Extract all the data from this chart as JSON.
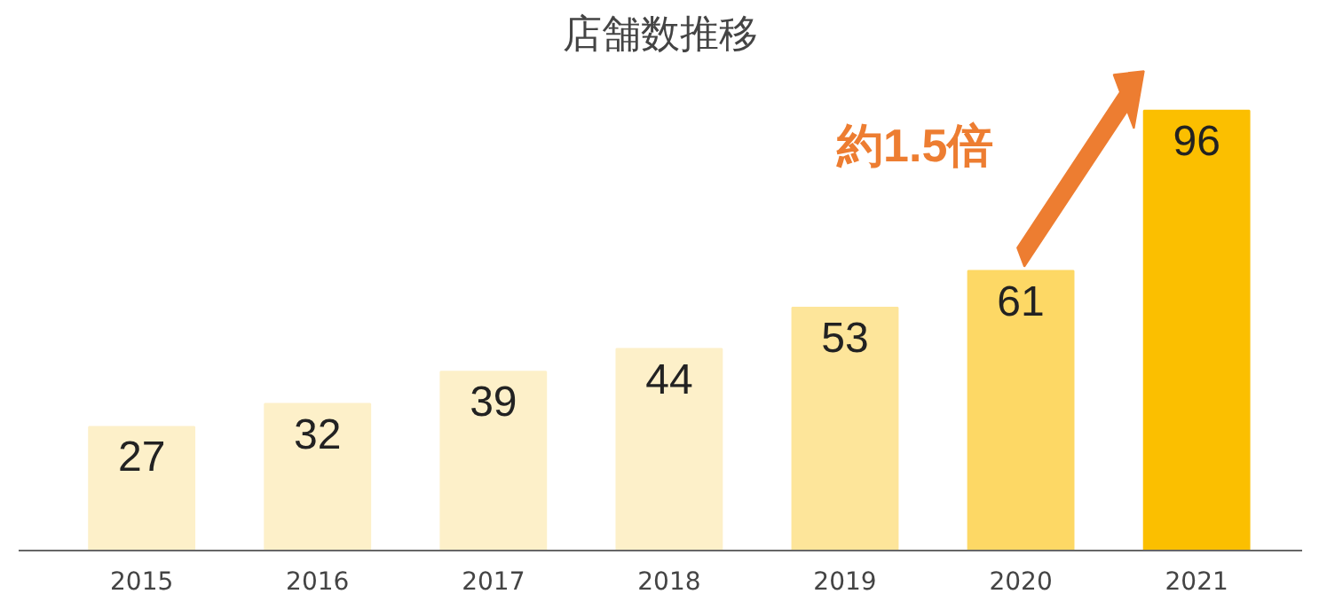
{
  "chart_data": {
    "type": "bar",
    "title": "店舗数推移",
    "categories": [
      "2015",
      "2016",
      "2017",
      "2018",
      "2019",
      "2020",
      "2021"
    ],
    "values": [
      27,
      32,
      39,
      44,
      53,
      61,
      96
    ],
    "colors": [
      "#fdf0c9",
      "#fdf0c9",
      "#fdf0c9",
      "#fdf0c9",
      "#fde59a",
      "#fdd865",
      "#fbbf00"
    ],
    "data_labels": true,
    "grid": false,
    "annotations": [
      "約1.5倍"
    ]
  }
}
